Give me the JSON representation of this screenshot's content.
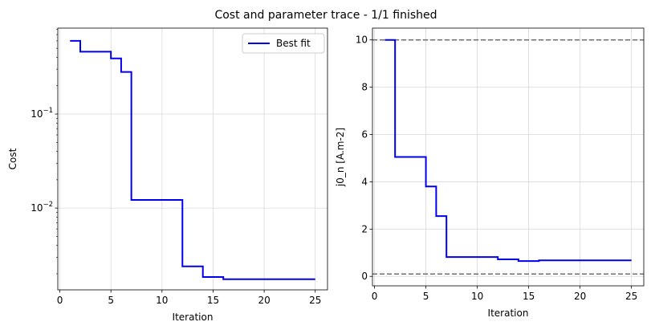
{
  "title": "Cost and parameter trace - 1/1 finished",
  "colors": {
    "series": "#0000ee",
    "bounds": "#707070",
    "grid": "#d9d9d9"
  },
  "chart_data": [
    {
      "type": "line",
      "step": "post",
      "title": "",
      "xlabel": "Iteration",
      "ylabel": "Cost",
      "yscale": "log",
      "xlim": [
        -0.2,
        26.2
      ],
      "ylim": [
        0.00135,
        0.82
      ],
      "xticks": [
        0,
        5,
        10,
        15,
        20,
        25
      ],
      "xtick_labels": [
        "0",
        "5",
        "10",
        "15",
        "20",
        "25"
      ],
      "yticks": [
        0.1,
        0.01
      ],
      "ytick_labels": [
        "10^-1",
        "10^-2"
      ],
      "grid": true,
      "legend": {
        "position": "top-right",
        "entries": [
          "Best fit"
        ]
      },
      "series": [
        {
          "name": "Best fit",
          "x": [
            1,
            2,
            5,
            6,
            7,
            12,
            14,
            16,
            25
          ],
          "y": [
            0.6,
            0.46,
            0.39,
            0.28,
            0.0122,
            0.0024,
            0.00185,
            0.00175,
            0.00175
          ]
        }
      ]
    },
    {
      "type": "line",
      "step": "post",
      "title": "",
      "xlabel": "Iteration",
      "ylabel": "j0_n [A.m-2]",
      "yscale": "linear",
      "xlim": [
        -0.2,
        26.2
      ],
      "ylim": [
        -0.4,
        10.5
      ],
      "xticks": [
        0,
        5,
        10,
        15,
        20,
        25
      ],
      "xtick_labels": [
        "0",
        "5",
        "10",
        "15",
        "20",
        "25"
      ],
      "yticks": [
        0,
        2,
        4,
        6,
        8,
        10
      ],
      "ytick_labels": [
        "0",
        "2",
        "4",
        "6",
        "8",
        "10"
      ],
      "grid": true,
      "bounds": [
        10,
        0.1
      ],
      "series": [
        {
          "name": "j0_n",
          "x": [
            1,
            2,
            5,
            6,
            7,
            12,
            14,
            16,
            25
          ],
          "y": [
            10,
            5.05,
            3.8,
            2.55,
            0.82,
            0.72,
            0.65,
            0.68,
            0.68
          ]
        }
      ]
    }
  ]
}
